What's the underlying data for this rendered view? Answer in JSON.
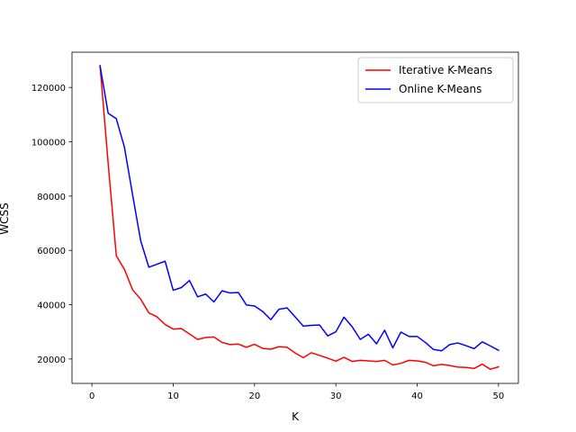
{
  "chart_data": {
    "type": "line",
    "title": "",
    "xlabel": "K",
    "ylabel": "WCSS",
    "xlim": [
      -2.45,
      52.45
    ],
    "ylim": [
      11000,
      133000
    ],
    "xticks": [
      0,
      10,
      20,
      30,
      40,
      50
    ],
    "yticks": [
      20000,
      40000,
      60000,
      80000,
      100000,
      120000
    ],
    "legend_position": "top-right",
    "grid": false,
    "x": [
      1,
      2,
      3,
      4,
      5,
      6,
      7,
      8,
      9,
      10,
      11,
      12,
      13,
      14,
      15,
      16,
      17,
      18,
      19,
      20,
      21,
      22,
      23,
      24,
      25,
      26,
      27,
      28,
      29,
      30,
      31,
      32,
      33,
      34,
      35,
      36,
      37,
      38,
      39,
      40,
      41,
      42,
      43,
      44,
      45,
      46,
      47,
      48,
      49,
      50
    ],
    "series": [
      {
        "name": "Iterative K-Means",
        "color": "#ff0000",
        "values": [
          128000,
          92000,
          58000,
          53000,
          45500,
          42000,
          37000,
          35500,
          32700,
          31000,
          31200,
          29200,
          27200,
          27900,
          28100,
          26100,
          25300,
          25500,
          24300,
          25400,
          23900,
          23600,
          24500,
          24300,
          22200,
          20500,
          22300,
          21300,
          20300,
          19200,
          20600,
          19100,
          19500,
          19300,
          19100,
          19500,
          17800,
          18400,
          19500,
          19300,
          18800,
          17500,
          18000,
          17600,
          17000,
          16900,
          16500,
          18100,
          16200,
          17100
        ]
      },
      {
        "name": "Online K-Means",
        "color": "#0000ff",
        "values": [
          128000,
          110500,
          108500,
          98000,
          80500,
          63500,
          53800,
          54900,
          56000,
          45300,
          46300,
          48900,
          42900,
          43900,
          41000,
          45100,
          44300,
          44500,
          39900,
          39500,
          37500,
          34500,
          38300,
          38800,
          35500,
          32100,
          32400,
          32500,
          28500,
          30000,
          35400,
          31900,
          27200,
          29100,
          25600,
          30600,
          24100,
          29900,
          28300,
          28300,
          26100,
          23500,
          23000,
          25300,
          25900,
          24900,
          23800,
          26300,
          24800,
          23200
        ]
      }
    ]
  }
}
